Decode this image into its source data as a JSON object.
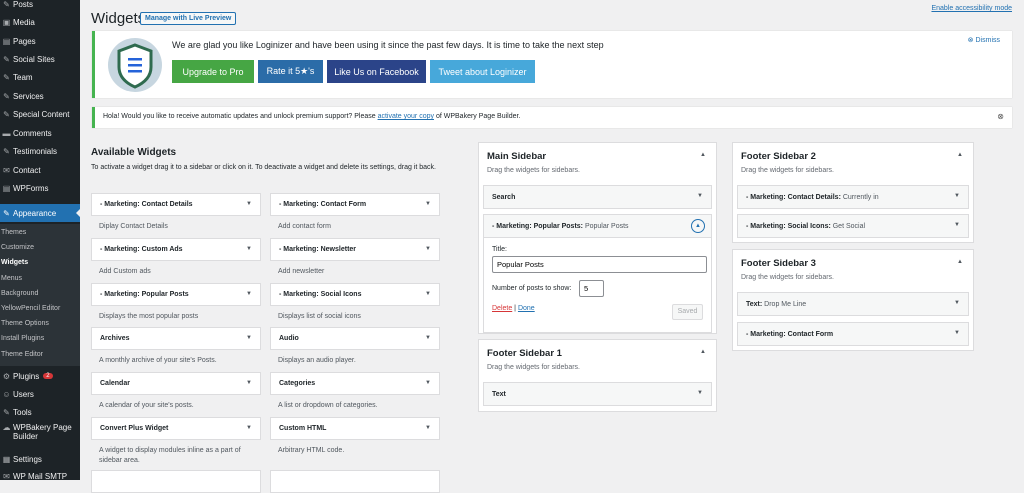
{
  "menu": {
    "items": [
      "Posts",
      "Media",
      "Pages",
      "Social Sites",
      "Team",
      "Services",
      "Special Content",
      "Comments",
      "Testimonials",
      "Contact",
      "WPForms",
      "Appearance",
      "Plugins",
      "Users",
      "Tools",
      "WPBakery Page Builder",
      "Settings",
      "WP Mail SMTP"
    ],
    "plugins_badge": "2",
    "submenu": [
      "Themes",
      "Customize",
      "Widgets",
      "Menus",
      "Background",
      "YellowPencil Editor",
      "Theme Options",
      "Install Plugins",
      "Theme Editor"
    ]
  },
  "header": {
    "title": "Widgets",
    "live_preview": "Manage with Live Preview",
    "accessibility": "Enable accessibility mode"
  },
  "notice_loginizer": {
    "message": "We are glad you like Loginizer and have been using it since the past few days. It is time to take the next step",
    "dismiss": "Dismiss",
    "buttons": [
      {
        "label": "Upgrade to Pro",
        "color": "#46a644"
      },
      {
        "label": "Rate it 5★'s",
        "color": "#2b6ca8"
      },
      {
        "label": "Like Us on Facebook",
        "color": "#2b4489"
      },
      {
        "label": "Tweet about Loginizer",
        "color": "#47a8da"
      }
    ]
  },
  "notice_wpbakery": {
    "before": "Hola! Would you like to receive automatic updates and unlock premium support? Please ",
    "link": "activate your copy",
    "after": " of WPBakery Page Builder."
  },
  "available": {
    "title": "Available Widgets",
    "description": "To activate a widget drag it to a sidebar or click on it. To deactivate a widget and delete its settings, drag it back.",
    "widgets": [
      {
        "name": "- Marketing: Contact Details",
        "desc": "Diplay Contact Details"
      },
      {
        "name": "- Marketing: Contact Form",
        "desc": "Add contact form"
      },
      {
        "name": "- Marketing: Custom Ads",
        "desc": "Add Custom ads"
      },
      {
        "name": "- Marketing: Newsletter",
        "desc": "Add newsletter"
      },
      {
        "name": "- Marketing: Popular Posts",
        "desc": "Displays the most popular posts"
      },
      {
        "name": "- Marketing: Social Icons",
        "desc": "Displays list of social icons"
      },
      {
        "name": "Archives",
        "desc": "A monthly archive of your site's Posts."
      },
      {
        "name": "Audio",
        "desc": "Displays an audio player."
      },
      {
        "name": "Calendar",
        "desc": "A calendar of your site's posts."
      },
      {
        "name": "Categories",
        "desc": "A list or dropdown of categories."
      },
      {
        "name": "Convert Plus Widget",
        "desc": "A widget to display modules inline as a part of sidebar area."
      },
      {
        "name": "Custom HTML",
        "desc": "Arbitrary HTML code."
      }
    ]
  },
  "sidebars": {
    "drag_text": "Drag the widgets for sidebars.",
    "main": {
      "title": "Main Sidebar",
      "w1": "Search",
      "w2": "- Marketing: Popular Posts:",
      "w2_sub": " Popular Posts",
      "form": {
        "title_label": "Title:",
        "title_value": "Popular Posts",
        "count_label": "Number of posts to show:",
        "count_value": "5",
        "delete": "Delete",
        "sep": " | ",
        "done": "Done",
        "saved": "Saved"
      }
    },
    "footer1": {
      "title": "Footer Sidebar 1",
      "w1": "Text"
    },
    "footer2": {
      "title": "Footer Sidebar 2",
      "w1": "- Marketing: Contact Details:",
      "w1_sub": " Currently in",
      "w2": "- Marketing: Social Icons:",
      "w2_sub": " Get Social"
    },
    "footer3": {
      "title": "Footer Sidebar 3",
      "w1": "Text:",
      "w1_sub": " Drop Me Line",
      "w2": "- Marketing: Contact Form"
    }
  }
}
